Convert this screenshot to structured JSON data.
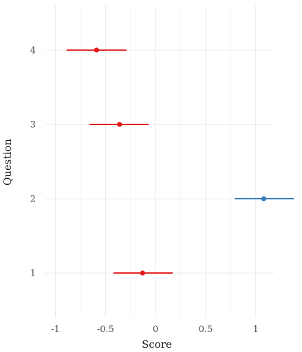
{
  "chart_data": {
    "type": "scatter",
    "title": "",
    "xlabel": "Score",
    "ylabel": "Question",
    "xlim": [
      -1.1,
      1.4
    ],
    "ylim": [
      0.4,
      4.6
    ],
    "x_ticks": [
      -1,
      -0.5,
      0,
      0.5,
      1
    ],
    "x_tick_labels": [
      "-1",
      "-0.5",
      "0",
      "0.5",
      "1"
    ],
    "y_ticks": [
      1,
      2,
      3,
      4
    ],
    "y_tick_labels": [
      "1",
      "2",
      "3",
      "4"
    ],
    "grid": true,
    "legend": "none",
    "colors": {
      "negative": "#e41a1c",
      "positive": "#377eb8"
    },
    "points": [
      {
        "question": 4,
        "score": -0.59,
        "lower": -0.89,
        "upper": -0.29
      },
      {
        "question": 3,
        "score": -0.36,
        "lower": -0.66,
        "upper": -0.07
      },
      {
        "question": 2,
        "score": 1.08,
        "lower": 0.79,
        "upper": 1.38
      },
      {
        "question": 1,
        "score": -0.13,
        "lower": -0.42,
        "upper": 0.17
      }
    ]
  }
}
